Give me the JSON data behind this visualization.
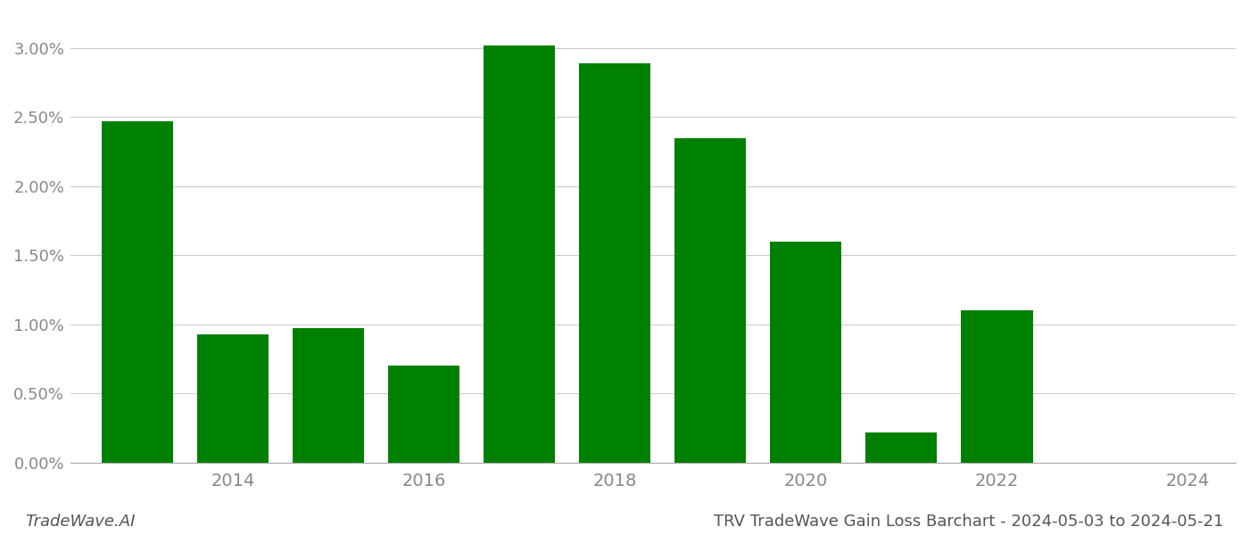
{
  "years": [
    2013,
    2014,
    2015,
    2016,
    2017,
    2018,
    2019,
    2020,
    2021,
    2022,
    2023
  ],
  "values": [
    0.0247,
    0.0093,
    0.0097,
    0.007,
    0.0302,
    0.0289,
    0.0235,
    0.016,
    0.0022,
    0.011,
    0.0
  ],
  "bar_color": "#008000",
  "footer_left": "TradeWave.AI",
  "footer_right": "TRV TradeWave Gain Loss Barchart - 2024-05-03 to 2024-05-21",
  "ylim": [
    0.0,
    0.0325
  ],
  "ytick_vals": [
    0.0,
    0.005,
    0.01,
    0.015,
    0.02,
    0.025,
    0.03
  ],
  "xtick_positions": [
    2014,
    2016,
    2018,
    2020,
    2022,
    2024
  ],
  "xtick_labels": [
    "2014",
    "2016",
    "2018",
    "2020",
    "2022",
    "2024"
  ],
  "xlim": [
    2012.3,
    2024.5
  ],
  "background_color": "#ffffff",
  "grid_color": "#cccccc",
  "bar_width": 0.75
}
